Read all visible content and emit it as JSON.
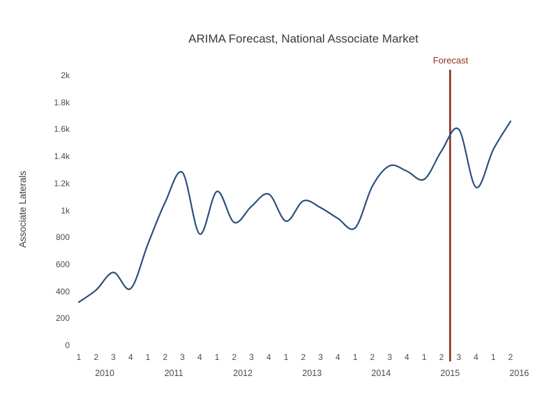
{
  "header": {
    "title": "ARIMA Forecast, National Associate Market"
  },
  "y_axis": {
    "title": "Associate Laterals",
    "tick_values": [
      0,
      200,
      400,
      600,
      800,
      1000,
      1200,
      1400,
      1600,
      1800,
      2000
    ],
    "tick_labels": [
      "0",
      "200",
      "400",
      "600",
      "800",
      "1k",
      "1.2k",
      "1.4k",
      "1.6k",
      "1.8k",
      "2k"
    ]
  },
  "x_axis": {
    "years": [
      {
        "label": "2010",
        "quarters": [
          "1",
          "2",
          "3",
          "4"
        ]
      },
      {
        "label": "2011",
        "quarters": [
          "1",
          "2",
          "3",
          "4"
        ]
      },
      {
        "label": "2012",
        "quarters": [
          "1",
          "2",
          "3",
          "4"
        ]
      },
      {
        "label": "2013",
        "quarters": [
          "1",
          "2",
          "3",
          "4"
        ]
      },
      {
        "label": "2014",
        "quarters": [
          "1",
          "2",
          "3",
          "4"
        ]
      },
      {
        "label": "2015",
        "quarters": [
          "1",
          "2",
          "3",
          "4"
        ]
      },
      {
        "label": "2016",
        "quarters": [
          "1",
          "2"
        ]
      }
    ]
  },
  "forecast_marker": {
    "label": "Forecast",
    "color": "#8e2f1d",
    "position": "between 2015 Q2 and 2015 Q3",
    "quarter_index": 21.5
  },
  "chart_data": {
    "type": "line",
    "title": "ARIMA Forecast, National Associate Market",
    "xlabel": "",
    "ylabel": "Associate Laterals",
    "categories": [
      "2010 Q1",
      "2010 Q2",
      "2010 Q3",
      "2010 Q4",
      "2011 Q1",
      "2011 Q2",
      "2011 Q3",
      "2011 Q4",
      "2012 Q1",
      "2012 Q2",
      "2012 Q3",
      "2012 Q4",
      "2013 Q1",
      "2013 Q2",
      "2013 Q3",
      "2013 Q4",
      "2014 Q1",
      "2014 Q2",
      "2014 Q3",
      "2014 Q4",
      "2015 Q1",
      "2015 Q2",
      "2015 Q3",
      "2015 Q4",
      "2016 Q1",
      "2016 Q2"
    ],
    "values": [
      320,
      410,
      540,
      420,
      750,
      1060,
      1280,
      825,
      1140,
      910,
      1030,
      1120,
      920,
      1070,
      1020,
      940,
      870,
      1180,
      1330,
      1290,
      1230,
      1440,
      1600,
      1170,
      1450,
      1660
    ],
    "ylim": [
      0,
      2000
    ],
    "ytick_step": 200,
    "grid": false,
    "legend": "none",
    "smooth": true,
    "line_color": "#2c4f7c",
    "forecast_start_after": "2015 Q2",
    "annotation": {
      "type": "vline",
      "label": "Forecast",
      "x": "2015 Q2/Q3 boundary",
      "color": "#8e2f1d"
    }
  }
}
